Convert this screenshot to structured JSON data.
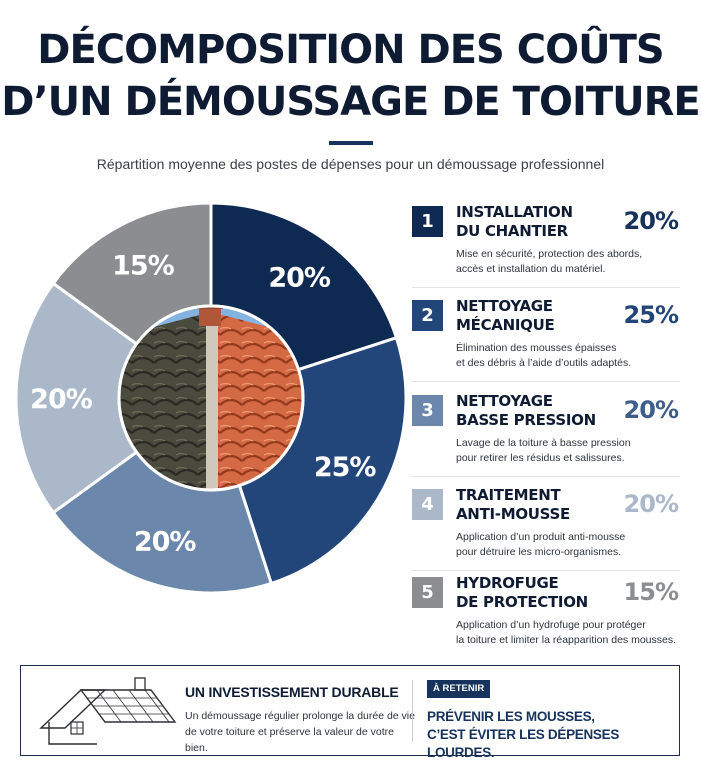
{
  "header": {
    "title_line1": "DÉCOMPOSITION DES COÛTS",
    "title_line2": "D’UN DÉMOUSSAGE DE TOITURE",
    "subtitle": "Répartition moyenne des postes de dépenses pour un démoussage professionnel"
  },
  "chart_data": {
    "type": "pie",
    "variant": "donut",
    "categories": [
      "Installation du chantier",
      "Nettoyage mécanique",
      "Nettoyage basse pression",
      "Traitement anti-mousse",
      "Hydrofuge de protection"
    ],
    "values": [
      20,
      25,
      20,
      20,
      15
    ],
    "labels": [
      "20%",
      "25%",
      "20%",
      "20%",
      "15%"
    ],
    "colors": [
      "#0f2a52",
      "#23467a",
      "#6b87ab",
      "#aab8ca",
      "#8b8d90"
    ],
    "center_image": "roof-tiles-photo"
  },
  "legend": [
    {
      "number": "1",
      "title": [
        "INSTALLATION",
        "DU CHANTIER"
      ],
      "percent": "20%",
      "description": [
        "Mise en sécurité, protection des abords,",
        "accès et installation du matériel."
      ],
      "color": "#0f2a52"
    },
    {
      "number": "2",
      "title": [
        "NETTOYAGE",
        "MÉCANIQUE"
      ],
      "percent": "25%",
      "description": [
        "Élimination des mousses épaisses",
        "et des débris à l’aide d’outils adaptés."
      ],
      "color": "#23467a"
    },
    {
      "number": "3",
      "title": [
        "NETTOYAGE",
        "BASSE PRESSION"
      ],
      "percent": "20%",
      "description": [
        "Lavage de la toiture à basse pression",
        "pour retirer les résidus et salissures."
      ],
      "color": "#6b87ab"
    },
    {
      "number": "4",
      "title": [
        "TRAITEMENT",
        "ANTI-MOUSSE"
      ],
      "percent": "20%",
      "description": [
        "Application d’un produit anti-mousse",
        "pour détruire les micro-organismes."
      ],
      "color": "#aab8ca"
    },
    {
      "number": "5",
      "title": [
        "HYDROFUGE",
        "DE PROTECTION"
      ],
      "percent": "15%",
      "description": [
        "Application d’un hydrofuge pour protéger",
        "la toiture et limiter la réapparition des mousses."
      ],
      "color": "#8b8d90"
    }
  ],
  "footer": {
    "icon": "house-roof-icon",
    "title": "UN INVESTISSEMENT DURABLE",
    "text": [
      "Un démoussage régulier prolonge la durée de vie",
      "de votre toiture et préserve la valeur de votre bien."
    ],
    "badge": "À RETENIR",
    "takeaway": [
      "PRÉVENIR LES MOUSSES,",
      "C’EST ÉVITER LES DÉPENSES LOURDES."
    ]
  }
}
